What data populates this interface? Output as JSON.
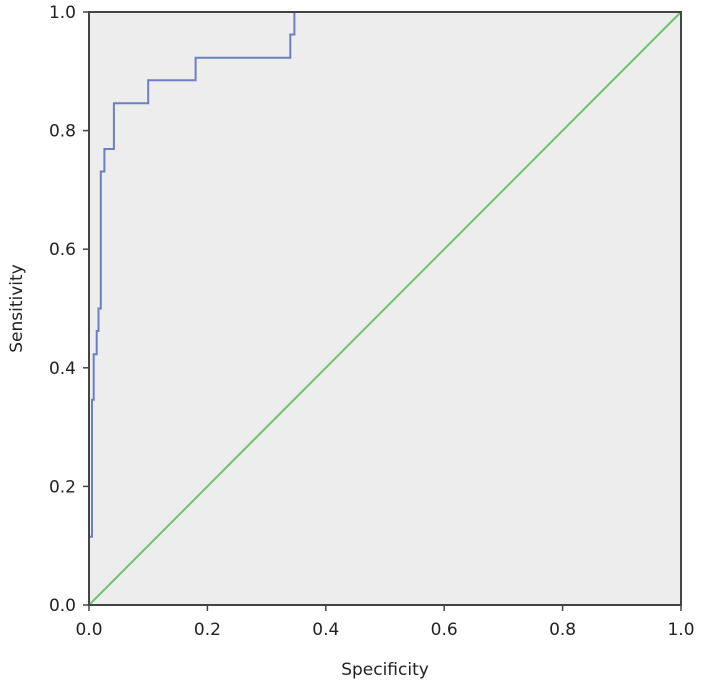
{
  "chart_data": {
    "type": "line",
    "title": "",
    "xlabel": "Specificity",
    "ylabel": "Sensitivity",
    "xlim": [
      0,
      1
    ],
    "ylim": [
      0,
      1
    ],
    "x_ticks": [
      "0.0",
      "0.2",
      "0.4",
      "0.6",
      "0.8",
      "1.0"
    ],
    "y_ticks": [
      "0.0",
      "0.2",
      "0.4",
      "0.6",
      "0.8",
      "1.0"
    ],
    "grid": false,
    "plot_background": "#ededed",
    "series": [
      {
        "color": "#6b7fc4",
        "x": [
          0.0,
          0.0,
          0.005,
          0.005,
          0.008,
          0.008,
          0.013,
          0.013,
          0.016,
          0.016,
          0.02,
          0.02,
          0.026,
          0.026,
          0.042,
          0.042,
          0.1,
          0.1,
          0.18,
          0.18,
          0.34,
          0.34,
          0.347,
          0.347,
          1.0
        ],
        "y": [
          0.115,
          0.115,
          0.115,
          0.346,
          0.346,
          0.423,
          0.423,
          0.462,
          0.462,
          0.5,
          0.5,
          0.731,
          0.731,
          0.769,
          0.769,
          0.846,
          0.846,
          0.885,
          0.885,
          0.923,
          0.923,
          0.962,
          0.962,
          1.0,
          1.0
        ]
      },
      {
        "color": "#6cc46c",
        "x": [
          0,
          1
        ],
        "y": [
          0,
          1
        ]
      }
    ]
  }
}
